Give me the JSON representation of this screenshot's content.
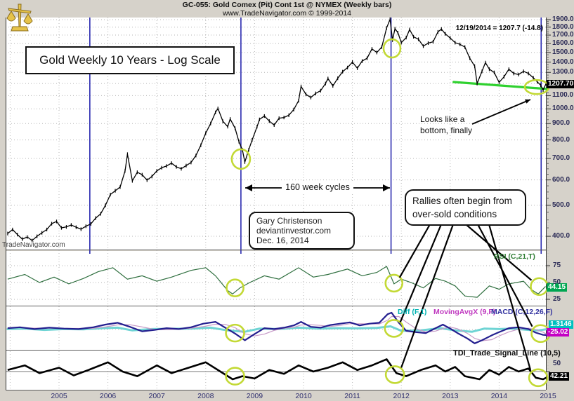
{
  "header": {
    "title": "GC-055:  Gold Comex (Pit) Cont 1st @ NYMEX  (Weekly bars)",
    "watermark": "www.TradeNavigator.com © 1999-2014",
    "quote": "12/19/2014 = 1207.7 (-14.8)"
  },
  "annotations": {
    "chart_title": "Gold Weekly 10 Years - Log Scale",
    "cycles": "160 week cycles",
    "credit_lines": [
      "Gary Christenson",
      "deviantinvestor.com",
      "Dec. 16, 2014"
    ],
    "rallies_lines": [
      "Rallies often begin from",
      "over-sold conditions"
    ],
    "bottom_note_lines": [
      "Looks like a",
      "bottom, finally"
    ],
    "left_watermark": "TradeNavigator.com"
  },
  "price_axis": {
    "ticks": [
      "1900.0",
      "1800.0",
      "1700.0",
      "1600.0",
      "1500.0",
      "1400.0",
      "1300.0",
      "1100.0",
      "1000.0",
      "900.0",
      "800.0",
      "700.0",
      "600.0",
      "500.0",
      "400.0"
    ],
    "current_label": "1207.70"
  },
  "x_axis": {
    "years": [
      "2005",
      "2006",
      "2007",
      "2008",
      "2009",
      "2010",
      "2011",
      "2012",
      "2013",
      "2014",
      "2015"
    ]
  },
  "indicators": {
    "rsi": {
      "label": "RSI (C,21,T)",
      "ticks": [
        "75",
        "50",
        "25"
      ],
      "value": "44.15"
    },
    "macd_row": {
      "diff_label": "Diff (F,1)",
      "mavg_label": "MovingAvgX (9,F)",
      "macd_label": "MACD (C,12,26,F)",
      "diff_value": "1.3146",
      "macd_value": "-25.02"
    },
    "tdi": {
      "label": "TDI_Trade_Signal_Line (10,5)",
      "tick": "50",
      "value": "42.21"
    }
  },
  "colors": {
    "background": "#d6d2ca",
    "panel": "#ffffff",
    "cycle_line": "#2a2ab0",
    "price_bars": "#000000",
    "trendline_green": "#2fd12f",
    "oversold_circle": "#c3d935",
    "rsi_line": "#2f6f3f",
    "macd_line": "#241f8f",
    "signal_line": "#c79ac7",
    "diff_line": "#6fd4d4",
    "tdi_line": "#000000",
    "rsi_badge": "#00a651",
    "diff_badge": "#00c0c0",
    "macd_badge": "#c400c4",
    "price_badge": "#000000"
  },
  "chart_data": {
    "type": "line",
    "title": "Gold Weekly 10 Years - Log Scale",
    "x_range": [
      2003.9,
      2015.05
    ],
    "legend_note": "weekly bars of Gold Comex (Pit) Cont 1st, log price scale",
    "price_panel": {
      "scale": "log",
      "ylim": [
        380,
        1950
      ],
      "series_name": "Gold weekly",
      "points": [
        [
          2003.95,
          408
        ],
        [
          2004.05,
          420
        ],
        [
          2004.15,
          405
        ],
        [
          2004.25,
          392
        ],
        [
          2004.35,
          398
        ],
        [
          2004.45,
          388
        ],
        [
          2004.55,
          400
        ],
        [
          2004.65,
          410
        ],
        [
          2004.75,
          420
        ],
        [
          2004.85,
          438
        ],
        [
          2004.95,
          445
        ],
        [
          2005.05,
          425
        ],
        [
          2005.15,
          428
        ],
        [
          2005.25,
          434
        ],
        [
          2005.35,
          427
        ],
        [
          2005.45,
          421
        ],
        [
          2005.55,
          430
        ],
        [
          2005.65,
          437
        ],
        [
          2005.75,
          456
        ],
        [
          2005.85,
          470
        ],
        [
          2005.95,
          500
        ],
        [
          2006.05,
          540
        ],
        [
          2006.15,
          555
        ],
        [
          2006.25,
          570
        ],
        [
          2006.35,
          640
        ],
        [
          2006.4,
          722
        ],
        [
          2006.5,
          596
        ],
        [
          2006.6,
          634
        ],
        [
          2006.7,
          623
        ],
        [
          2006.8,
          599
        ],
        [
          2006.9,
          615
        ],
        [
          2007.0,
          640
        ],
        [
          2007.1,
          655
        ],
        [
          2007.2,
          663
        ],
        [
          2007.3,
          677
        ],
        [
          2007.4,
          659
        ],
        [
          2007.5,
          650
        ],
        [
          2007.6,
          665
        ],
        [
          2007.7,
          680
        ],
        [
          2007.8,
          715
        ],
        [
          2007.9,
          770
        ],
        [
          2008.0,
          840
        ],
        [
          2008.1,
          900
        ],
        [
          2008.2,
          975
        ],
        [
          2008.25,
          1003
        ],
        [
          2008.35,
          915
        ],
        [
          2008.45,
          880
        ],
        [
          2008.5,
          930
        ],
        [
          2008.6,
          870
        ],
        [
          2008.68,
          790
        ],
        [
          2008.75,
          745
        ],
        [
          2008.8,
          682
        ],
        [
          2008.88,
          745
        ],
        [
          2008.95,
          800
        ],
        [
          2009.05,
          880
        ],
        [
          2009.1,
          927
        ],
        [
          2009.2,
          950
        ],
        [
          2009.3,
          916
        ],
        [
          2009.4,
          890
        ],
        [
          2009.5,
          935
        ],
        [
          2009.6,
          940
        ],
        [
          2009.7,
          955
        ],
        [
          2009.8,
          995
        ],
        [
          2009.9,
          1060
        ],
        [
          2009.95,
          1175
        ],
        [
          2010.05,
          1110
        ],
        [
          2010.15,
          1085
        ],
        [
          2010.25,
          1118
        ],
        [
          2010.35,
          1140
        ],
        [
          2010.45,
          1200
        ],
        [
          2010.5,
          1244
        ],
        [
          2010.6,
          1180
        ],
        [
          2010.7,
          1246
        ],
        [
          2010.8,
          1307
        ],
        [
          2010.9,
          1346
        ],
        [
          2011.0,
          1400
        ],
        [
          2011.1,
          1340
        ],
        [
          2011.2,
          1411
        ],
        [
          2011.3,
          1439
        ],
        [
          2011.4,
          1540
        ],
        [
          2011.5,
          1500
        ],
        [
          2011.6,
          1560
        ],
        [
          2011.7,
          1790
        ],
        [
          2011.77,
          1905
        ],
        [
          2011.82,
          1640
        ],
        [
          2011.87,
          1780
        ],
        [
          2011.93,
          1730
        ],
        [
          2012.0,
          1610
        ],
        [
          2012.1,
          1670
        ],
        [
          2012.17,
          1770
        ],
        [
          2012.25,
          1680
        ],
        [
          2012.35,
          1650
        ],
        [
          2012.45,
          1570
        ],
        [
          2012.55,
          1605
        ],
        [
          2012.65,
          1620
        ],
        [
          2012.75,
          1740
        ],
        [
          2012.82,
          1775
        ],
        [
          2012.9,
          1715
        ],
        [
          2013.0,
          1665
        ],
        [
          2013.1,
          1610
        ],
        [
          2013.2,
          1590
        ],
        [
          2013.3,
          1560
        ],
        [
          2013.4,
          1440
        ],
        [
          2013.5,
          1360
        ],
        [
          2013.55,
          1200
        ],
        [
          2013.65,
          1310
        ],
        [
          2013.72,
          1395
        ],
        [
          2013.8,
          1330
        ],
        [
          2013.9,
          1300
        ],
        [
          2014.0,
          1210
        ],
        [
          2014.1,
          1260
        ],
        [
          2014.2,
          1330
        ],
        [
          2014.3,
          1290
        ],
        [
          2014.4,
          1280
        ],
        [
          2014.5,
          1310
        ],
        [
          2014.6,
          1290
        ],
        [
          2014.7,
          1250
        ],
        [
          2014.78,
          1215
        ],
        [
          2014.85,
          1185
        ],
        [
          2014.9,
          1145
        ],
        [
          2014.97,
          1207.7
        ]
      ]
    },
    "cycle_lines_years": [
      2005.63,
      2008.72,
      2011.79,
      2014.86
    ],
    "trendline": {
      "from": [
        2013.07,
        1213
      ],
      "to": [
        2014.98,
        1154
      ]
    },
    "oversold_circles": {
      "price": [
        [
          2008.72,
          697
        ],
        [
          2011.81,
          1545
        ],
        [
          2014.77,
          1170
        ]
      ],
      "rsi": [
        [
          2008.6,
          42
        ],
        [
          2011.85,
          49
        ],
        [
          2014.82,
          44
        ]
      ],
      "macd": [
        [
          2008.6,
          -16
        ],
        [
          2011.85,
          5
        ],
        [
          2014.85,
          -18
        ]
      ],
      "tdi": [
        [
          2008.6,
          44
        ],
        [
          2011.87,
          46
        ],
        [
          2014.8,
          42
        ]
      ]
    },
    "rsi": {
      "range": [
        0,
        100
      ],
      "current": 44.15,
      "points": [
        [
          2003.95,
          55
        ],
        [
          2004.3,
          62
        ],
        [
          2004.6,
          50
        ],
        [
          2004.9,
          58
        ],
        [
          2005.2,
          48
        ],
        [
          2005.5,
          56
        ],
        [
          2005.8,
          66
        ],
        [
          2006.1,
          72
        ],
        [
          2006.4,
          55
        ],
        [
          2006.7,
          60
        ],
        [
          2007.0,
          52
        ],
        [
          2007.3,
          58
        ],
        [
          2007.7,
          68
        ],
        [
          2008.0,
          72
        ],
        [
          2008.2,
          60
        ],
        [
          2008.45,
          38
        ],
        [
          2008.55,
          33
        ],
        [
          2008.7,
          42
        ],
        [
          2008.9,
          50
        ],
        [
          2009.2,
          60
        ],
        [
          2009.5,
          55
        ],
        [
          2009.9,
          72
        ],
        [
          2010.2,
          58
        ],
        [
          2010.5,
          62
        ],
        [
          2010.9,
          70
        ],
        [
          2011.2,
          60
        ],
        [
          2011.5,
          65
        ],
        [
          2011.7,
          74
        ],
        [
          2011.85,
          48
        ],
        [
          2012.0,
          55
        ],
        [
          2012.2,
          50
        ],
        [
          2012.45,
          42
        ],
        [
          2012.7,
          56
        ],
        [
          2012.9,
          52
        ],
        [
          2013.1,
          45
        ],
        [
          2013.3,
          30
        ],
        [
          2013.55,
          28
        ],
        [
          2013.8,
          45
        ],
        [
          2014.0,
          40
        ],
        [
          2014.2,
          48
        ],
        [
          2014.5,
          52
        ],
        [
          2014.65,
          40
        ],
        [
          2014.8,
          33
        ],
        [
          2014.95,
          44.15
        ]
      ]
    },
    "macd": {
      "current": -25.02,
      "points": [
        [
          2003.95,
          6
        ],
        [
          2004.2,
          10
        ],
        [
          2004.5,
          2
        ],
        [
          2004.8,
          8
        ],
        [
          2005.1,
          4
        ],
        [
          2005.4,
          2
        ],
        [
          2005.7,
          10
        ],
        [
          2005.95,
          22
        ],
        [
          2006.2,
          30
        ],
        [
          2006.45,
          12
        ],
        [
          2006.7,
          -8
        ],
        [
          2006.95,
          -2
        ],
        [
          2007.2,
          6
        ],
        [
          2007.45,
          2
        ],
        [
          2007.7,
          10
        ],
        [
          2007.95,
          26
        ],
        [
          2008.2,
          34
        ],
        [
          2008.4,
          8
        ],
        [
          2008.6,
          -18
        ],
        [
          2008.8,
          -48
        ],
        [
          2009.0,
          -20
        ],
        [
          2009.2,
          6
        ],
        [
          2009.4,
          2
        ],
        [
          2009.6,
          8
        ],
        [
          2009.8,
          18
        ],
        [
          2009.95,
          34
        ],
        [
          2010.15,
          12
        ],
        [
          2010.35,
          8
        ],
        [
          2010.55,
          20
        ],
        [
          2010.75,
          26
        ],
        [
          2010.95,
          32
        ],
        [
          2011.15,
          18
        ],
        [
          2011.35,
          26
        ],
        [
          2011.55,
          30
        ],
        [
          2011.72,
          68
        ],
        [
          2011.8,
          75
        ],
        [
          2011.95,
          30
        ],
        [
          2012.1,
          -6
        ],
        [
          2012.3,
          -12
        ],
        [
          2012.5,
          -16
        ],
        [
          2012.7,
          6
        ],
        [
          2012.85,
          22
        ],
        [
          2013.0,
          4
        ],
        [
          2013.15,
          -16
        ],
        [
          2013.35,
          -40
        ],
        [
          2013.5,
          -62
        ],
        [
          2013.65,
          -48
        ],
        [
          2013.85,
          -26
        ],
        [
          2014.0,
          -12
        ],
        [
          2014.2,
          6
        ],
        [
          2014.4,
          10
        ],
        [
          2014.6,
          2
        ],
        [
          2014.75,
          -14
        ],
        [
          2014.9,
          -24
        ],
        [
          2014.97,
          -25.02
        ]
      ]
    },
    "diff": {
      "current": 1.3146,
      "points": [
        [
          2003.95,
          2
        ],
        [
          2004.3,
          4
        ],
        [
          2004.7,
          -2
        ],
        [
          2005.1,
          2
        ],
        [
          2005.5,
          1
        ],
        [
          2005.9,
          6
        ],
        [
          2006.2,
          8
        ],
        [
          2006.5,
          -4
        ],
        [
          2006.9,
          2
        ],
        [
          2007.3,
          3
        ],
        [
          2007.7,
          4
        ],
        [
          2008.1,
          8
        ],
        [
          2008.45,
          -4
        ],
        [
          2008.8,
          -10
        ],
        [
          2009.1,
          4
        ],
        [
          2009.5,
          2
        ],
        [
          2009.9,
          8
        ],
        [
          2010.3,
          4
        ],
        [
          2010.7,
          6
        ],
        [
          2011.1,
          5
        ],
        [
          2011.5,
          7
        ],
        [
          2011.78,
          14
        ],
        [
          2012.0,
          -6
        ],
        [
          2012.4,
          -4
        ],
        [
          2012.8,
          6
        ],
        [
          2013.1,
          -4
        ],
        [
          2013.45,
          -10
        ],
        [
          2013.7,
          4
        ],
        [
          2014.0,
          2
        ],
        [
          2014.3,
          4
        ],
        [
          2014.6,
          -2
        ],
        [
          2014.8,
          -4
        ],
        [
          2014.97,
          1.3
        ]
      ]
    },
    "tdi": {
      "threshold": 50,
      "current": 42.21,
      "points": [
        [
          2003.95,
          52
        ],
        [
          2004.3,
          58
        ],
        [
          2004.6,
          48
        ],
        [
          2005.0,
          55
        ],
        [
          2005.3,
          45
        ],
        [
          2005.6,
          52
        ],
        [
          2006.0,
          62
        ],
        [
          2006.3,
          50
        ],
        [
          2006.6,
          44
        ],
        [
          2007.0,
          58
        ],
        [
          2007.3,
          48
        ],
        [
          2007.6,
          54
        ],
        [
          2008.0,
          62
        ],
        [
          2008.3,
          50
        ],
        [
          2008.55,
          40
        ],
        [
          2008.75,
          44
        ],
        [
          2009.0,
          41
        ],
        [
          2009.3,
          52
        ],
        [
          2009.6,
          47
        ],
        [
          2009.9,
          58
        ],
        [
          2010.2,
          50
        ],
        [
          2010.5,
          55
        ],
        [
          2010.8,
          62
        ],
        [
          2011.1,
          52
        ],
        [
          2011.4,
          58
        ],
        [
          2011.7,
          66
        ],
        [
          2011.9,
          48
        ],
        [
          2012.1,
          44
        ],
        [
          2012.4,
          52
        ],
        [
          2012.7,
          58
        ],
        [
          2012.9,
          50
        ],
        [
          2013.1,
          56
        ],
        [
          2013.3,
          44
        ],
        [
          2013.6,
          40
        ],
        [
          2013.8,
          52
        ],
        [
          2014.0,
          46
        ],
        [
          2014.2,
          56
        ],
        [
          2014.4,
          50
        ],
        [
          2014.6,
          54
        ],
        [
          2014.75,
          42
        ],
        [
          2014.9,
          40
        ],
        [
          2014.97,
          42.21
        ]
      ]
    }
  }
}
